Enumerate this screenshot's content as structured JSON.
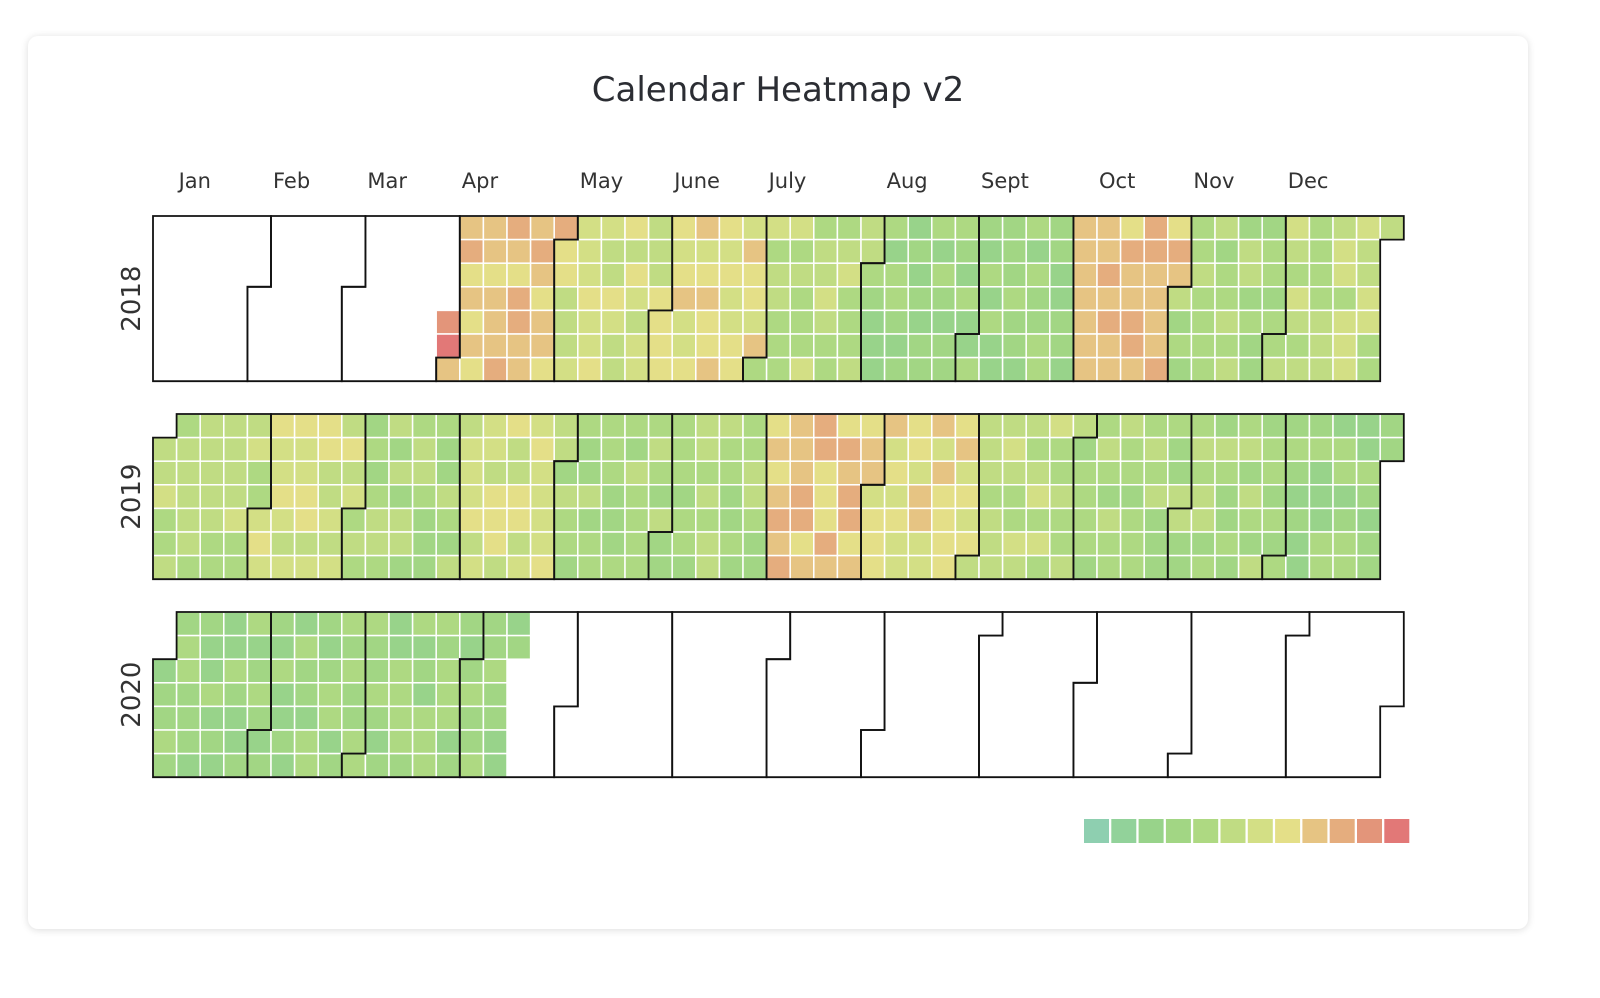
{
  "title": "Calendar Heatmap v2",
  "chart_data": {
    "type": "heatmap",
    "title": "Calendar Heatmap v2",
    "calendar": "weekday rows Mon-Sun, one column per week",
    "years": [
      "2018",
      "2019",
      "2020"
    ],
    "months": [
      "Jan",
      "Feb",
      "Mar",
      "Apr",
      "May",
      "June",
      "July",
      "Aug",
      "Sept",
      "Oct",
      "Nov",
      "Dec"
    ],
    "data_start": "2018-03-30",
    "data_end": "2020-04-14",
    "value_scale": "0 (green) to 11 (red), monthly average level",
    "monthly_levels": {
      "2018": [
        null,
        null,
        11,
        8,
        6,
        7,
        5,
        3,
        3,
        8,
        4,
        5
      ],
      "2019": [
        5,
        6,
        4,
        6,
        4,
        4,
        8,
        7,
        5,
        4,
        4,
        3
      ],
      "2020": [
        3,
        3,
        3,
        3,
        null,
        null,
        null,
        null,
        null,
        null,
        null,
        null
      ]
    },
    "legend": {
      "position": "bottom-right",
      "colors": [
        "#8ecfb0",
        "#92d29a",
        "#98d38a",
        "#a2d684",
        "#aed982",
        "#c0dc83",
        "#d3df85",
        "#e4df88",
        "#e6c483",
        "#e5ad7e",
        "#e3957a",
        "#e27877"
      ]
    }
  }
}
